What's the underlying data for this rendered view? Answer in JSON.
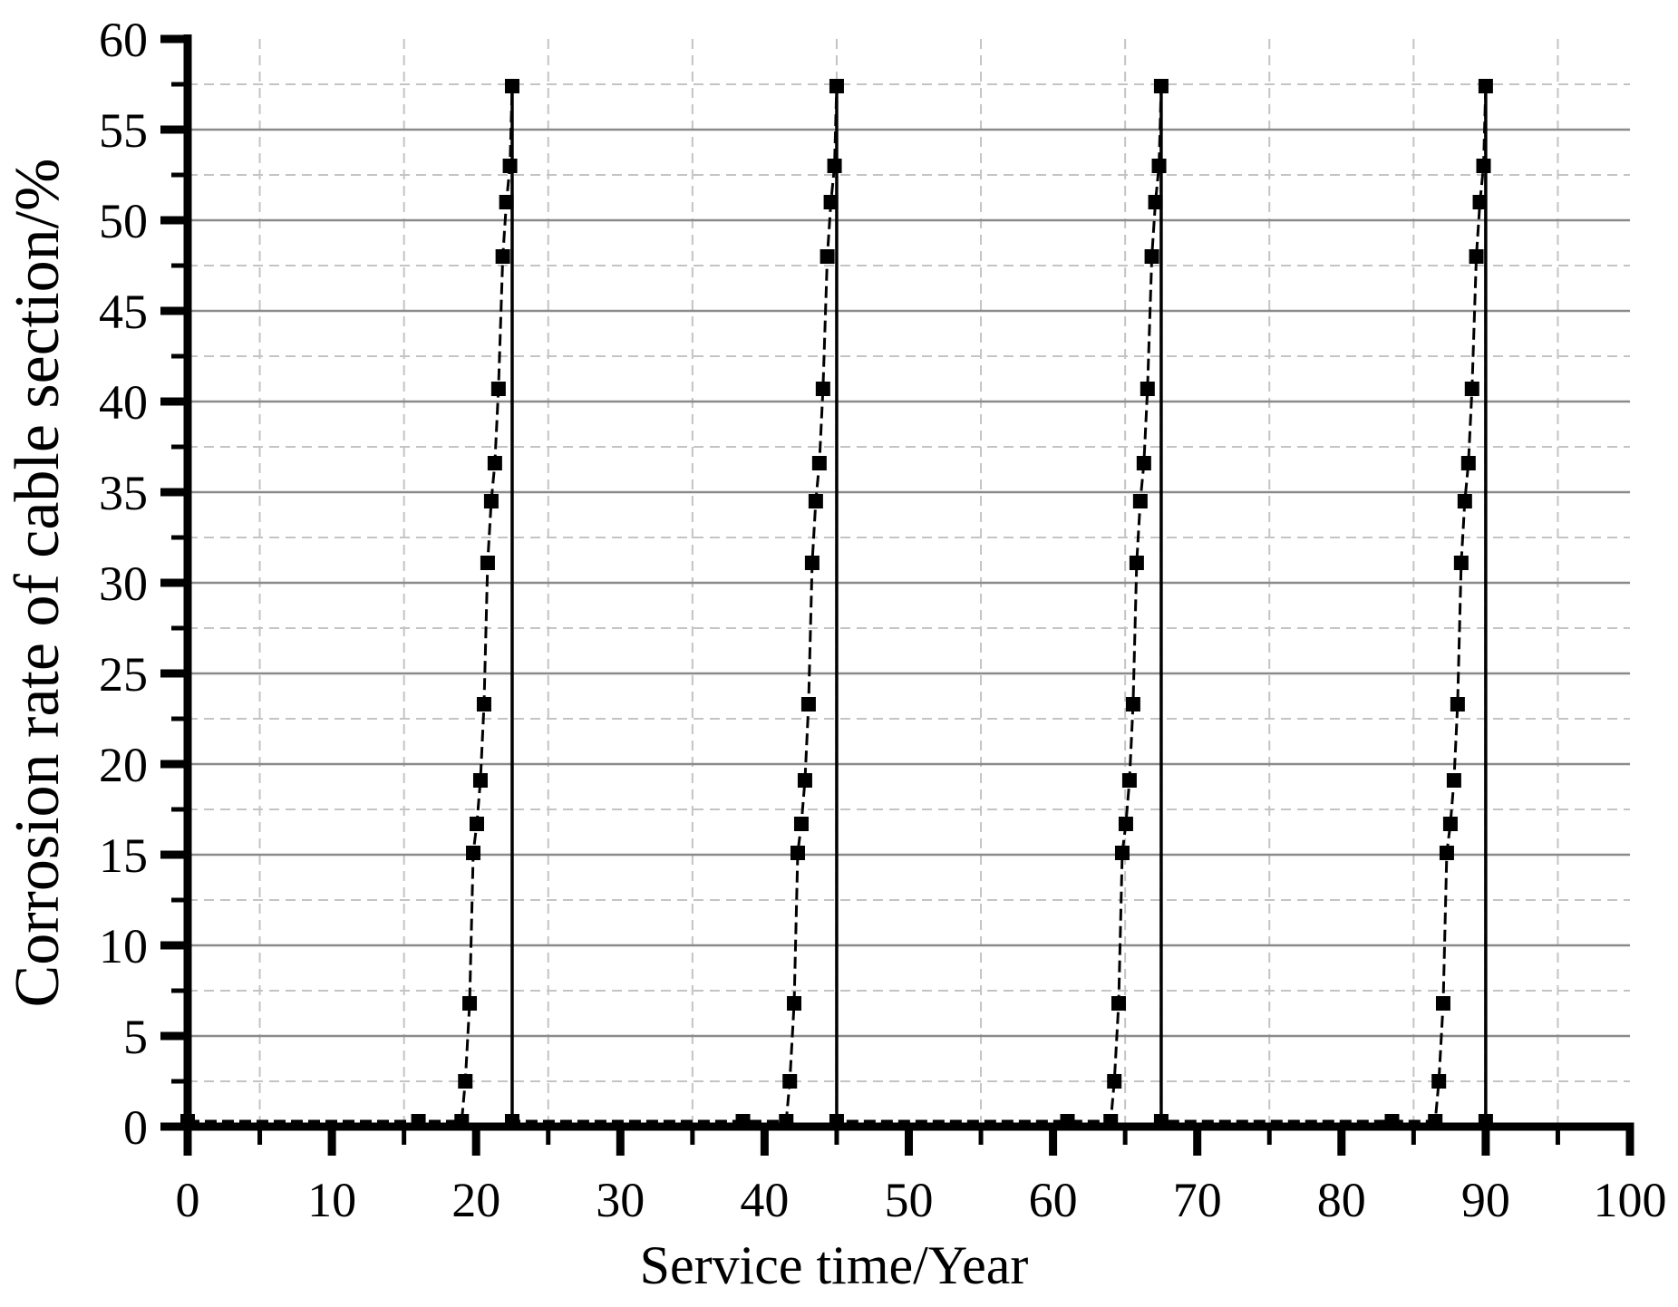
{
  "chart_data": {
    "type": "line",
    "title": "",
    "xlabel": "Service time/Year",
    "ylabel": "Corrosion rate of cable section/%",
    "xlim": [
      0,
      100
    ],
    "ylim": [
      0,
      60
    ],
    "grid": true,
    "legend": false,
    "x_major_ticks": [
      0,
      10,
      20,
      30,
      40,
      50,
      60,
      70,
      80,
      90,
      100
    ],
    "x_minor_ticks": [
      5,
      15,
      25,
      35,
      45,
      55,
      65,
      75,
      85,
      95
    ],
    "y_major_ticks": [
      0,
      5,
      10,
      15,
      20,
      25,
      30,
      35,
      40,
      45,
      50,
      55,
      60
    ],
    "y_minor_ticks": [
      2.5,
      7.5,
      12.5,
      17.5,
      22.5,
      27.5,
      32.5,
      37.5,
      42.5,
      47.5,
      52.5,
      57.5
    ],
    "x_tick_labels": [
      "0",
      "10",
      "20",
      "30",
      "40",
      "50",
      "60",
      "70",
      "80",
      "90",
      "100"
    ],
    "y_tick_labels": [
      "0",
      "5",
      "10",
      "15",
      "20",
      "25",
      "30",
      "35",
      "40",
      "45",
      "50",
      "55",
      "60"
    ],
    "x_gridlines_minor_dashed": [
      5,
      15,
      25,
      35,
      45,
      55,
      65,
      75,
      85,
      95
    ],
    "y_gridlines_major_solid": [
      5,
      10,
      15,
      20,
      25,
      30,
      35,
      40,
      45,
      50,
      55
    ],
    "y_gridlines_minor_dashed": [
      2.5,
      7.5,
      12.5,
      17.5,
      22.5,
      27.5,
      32.5,
      37.5,
      42.5,
      47.5,
      52.5,
      57.5
    ],
    "cycle_period_years": 22.5,
    "cycle_peak_value": 57.4,
    "drop_lines": {
      "x": [
        22.5,
        45,
        67.5,
        90
      ],
      "y_top": 57.4,
      "y_bottom": 0.3
    },
    "series": [
      {
        "name": "Corrosion rate of cable section",
        "color": "#000000",
        "marker": "square",
        "line_style": "dashed",
        "points": [
          [
            0,
            0.3
          ],
          [
            16,
            0.3
          ],
          [
            19,
            0.3
          ],
          [
            19.25,
            2.5
          ],
          [
            19.55,
            6.8
          ],
          [
            19.8,
            15.1
          ],
          [
            20.05,
            16.7
          ],
          [
            20.3,
            19.1
          ],
          [
            20.55,
            23.3
          ],
          [
            20.8,
            31.1
          ],
          [
            21.05,
            34.5
          ],
          [
            21.3,
            36.6
          ],
          [
            21.55,
            40.7
          ],
          [
            21.85,
            48.0
          ],
          [
            22.1,
            51.0
          ],
          [
            22.35,
            53.0
          ],
          [
            22.5,
            57.4
          ],
          [
            22.5,
            0.3
          ],
          [
            38.5,
            0.3
          ],
          [
            41.5,
            0.3
          ],
          [
            41.75,
            2.5
          ],
          [
            42.05,
            6.8
          ],
          [
            42.3,
            15.1
          ],
          [
            42.55,
            16.7
          ],
          [
            42.8,
            19.1
          ],
          [
            43.05,
            23.3
          ],
          [
            43.3,
            31.1
          ],
          [
            43.55,
            34.5
          ],
          [
            43.8,
            36.6
          ],
          [
            44.05,
            40.7
          ],
          [
            44.35,
            48.0
          ],
          [
            44.6,
            51.0
          ],
          [
            44.85,
            53.0
          ],
          [
            45,
            57.4
          ],
          [
            45,
            0.3
          ],
          [
            61,
            0.3
          ],
          [
            64,
            0.3
          ],
          [
            64.25,
            2.5
          ],
          [
            64.55,
            6.8
          ],
          [
            64.8,
            15.1
          ],
          [
            65.05,
            16.7
          ],
          [
            65.3,
            19.1
          ],
          [
            65.55,
            23.3
          ],
          [
            65.8,
            31.1
          ],
          [
            66.05,
            34.5
          ],
          [
            66.3,
            36.6
          ],
          [
            66.55,
            40.7
          ],
          [
            66.85,
            48.0
          ],
          [
            67.1,
            51.0
          ],
          [
            67.35,
            53.0
          ],
          [
            67.5,
            57.4
          ],
          [
            67.5,
            0.3
          ],
          [
            83.5,
            0.3
          ],
          [
            86.5,
            0.3
          ],
          [
            86.75,
            2.5
          ],
          [
            87.05,
            6.8
          ],
          [
            87.3,
            15.1
          ],
          [
            87.55,
            16.7
          ],
          [
            87.8,
            19.1
          ],
          [
            88.05,
            23.3
          ],
          [
            88.3,
            31.1
          ],
          [
            88.55,
            34.5
          ],
          [
            88.8,
            36.6
          ],
          [
            89.05,
            40.7
          ],
          [
            89.35,
            48.0
          ],
          [
            89.6,
            51.0
          ],
          [
            89.85,
            53.0
          ],
          [
            90,
            57.4
          ],
          [
            90,
            0.3
          ]
        ]
      }
    ]
  },
  "colors": {
    "background": "#ffffff",
    "axis": "#000000",
    "grid_major": "#8a8a8a",
    "grid_minor": "#c4c4c4",
    "series": "#000000"
  }
}
